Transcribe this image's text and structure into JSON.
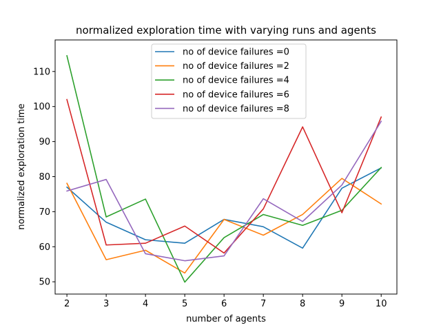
{
  "chart_data": {
    "type": "line",
    "title": "normalized exploration time with varying runs and agents",
    "xlabel": "number of agents",
    "ylabel": "normalized exploration time",
    "xlim": [
      1.7,
      10.4
    ],
    "ylim": [
      46.5,
      119.0
    ],
    "xticks": [
      2,
      3,
      4,
      5,
      6,
      7,
      8,
      9,
      10
    ],
    "yticks": [
      50,
      60,
      70,
      80,
      90,
      100,
      110
    ],
    "legend_position": "upper center",
    "x": [
      2,
      3,
      4,
      5,
      6,
      7,
      8,
      9,
      10
    ],
    "series": [
      {
        "name": "no of device failures =0",
        "color": "#1f77b4",
        "values": [
          77.0,
          67.0,
          62.0,
          61.0,
          67.8,
          65.7,
          59.6,
          76.7,
          82.5
        ]
      },
      {
        "name": "no of device failures =2",
        "color": "#ff7f0e",
        "values": [
          78.1,
          56.3,
          59.0,
          52.5,
          67.8,
          63.3,
          69.2,
          79.5,
          72.2
        ]
      },
      {
        "name": "no of device failures =4",
        "color": "#2ca02c",
        "values": [
          114.5,
          68.5,
          73.6,
          49.9,
          62.6,
          69.2,
          66.1,
          70.4,
          82.6
        ]
      },
      {
        "name": "no of device failures =6",
        "color": "#d62728",
        "values": [
          102.0,
          60.5,
          61.0,
          65.9,
          58.2,
          70.8,
          94.2,
          69.7,
          97.0
        ]
      },
      {
        "name": "no of device failures =8",
        "color": "#9467bd",
        "values": [
          75.9,
          79.2,
          58.0,
          56.0,
          57.4,
          73.7,
          67.2,
          77.6,
          95.8
        ]
      }
    ]
  }
}
